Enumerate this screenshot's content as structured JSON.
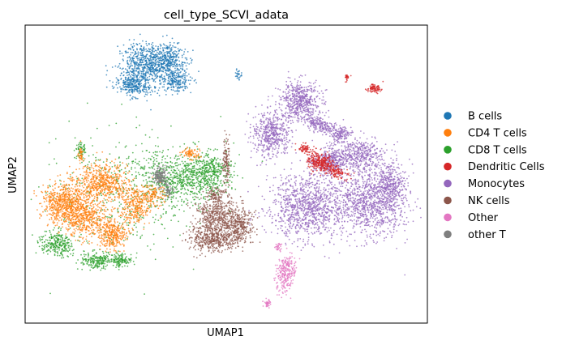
{
  "chart_data": {
    "type": "scatter",
    "title": "cell_type_SCVI_adata",
    "xlabel": "UMAP1",
    "ylabel": "UMAP2",
    "grid": false,
    "ticks": false,
    "legend_position": "right",
    "series": [
      {
        "name": "B cells",
        "color": "#1f77b4"
      },
      {
        "name": "CD4 T cells",
        "color": "#ff7f0e"
      },
      {
        "name": "CD8 T cells",
        "color": "#2ca02c"
      },
      {
        "name": "Dendritic Cells",
        "color": "#d62728"
      },
      {
        "name": "Monocytes",
        "color": "#9467bd"
      },
      {
        "name": "NK cells",
        "color": "#8c564b"
      },
      {
        "name": "Other",
        "color": "#e377c2"
      },
      {
        "name": "other T",
        "color": "#7f7f7f"
      }
    ]
  }
}
